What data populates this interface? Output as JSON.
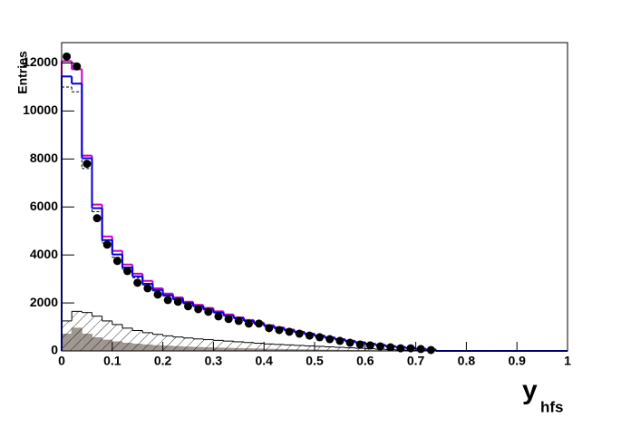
{
  "chart_data": {
    "type": "histogram",
    "y_label": "Entries",
    "x_label": "y",
    "x_label_sub": "hfs",
    "bins": [
      0,
      0.02,
      0.04,
      0.06,
      0.08,
      0.1,
      0.12,
      0.14,
      0.16,
      0.18,
      0.2,
      0.22,
      0.24,
      0.26,
      0.28,
      0.3,
      0.32,
      0.34,
      0.36,
      0.38,
      0.4,
      0.42,
      0.44,
      0.46,
      0.48,
      0.5,
      0.52,
      0.54,
      0.56,
      0.58,
      0.6,
      0.62,
      0.64,
      0.66,
      0.68,
      0.7,
      0.72,
      0.74,
      0.76,
      0.78,
      0.8,
      0.82,
      0.84,
      0.86,
      0.88,
      0.9,
      0.92,
      0.94,
      0.96,
      0.98,
      1
    ],
    "xlim": [
      0,
      1
    ],
    "xticks": [
      0,
      0.1,
      0.2,
      0.3,
      0.4,
      0.5,
      0.6,
      0.7,
      0.8,
      0.9,
      1
    ],
    "ylim": [
      0,
      12850
    ],
    "yticks": [
      0,
      2000,
      4000,
      6000,
      8000,
      10000,
      12000
    ],
    "series": [
      {
        "style": "filled",
        "color": "#a09690",
        "values": [
          700,
          950,
          700,
          550,
          450,
          380,
          320,
          280,
          250,
          220,
          200,
          180,
          160,
          145,
          130,
          120,
          110,
          100,
          90,
          80,
          70,
          62,
          55,
          48,
          42,
          36,
          30,
          25,
          20,
          16,
          12,
          9,
          6,
          4,
          3,
          2,
          1,
          0,
          0,
          0,
          0,
          0,
          0,
          0,
          0,
          0,
          0,
          0,
          0,
          0
        ]
      },
      {
        "style": "hatched",
        "color": "#000000",
        "values": [
          1250,
          1650,
          1600,
          1450,
          1250,
          1100,
          950,
          850,
          760,
          690,
          630,
          580,
          540,
          500,
          470,
          440,
          410,
          380,
          350,
          320,
          290,
          270,
          250,
          230,
          210,
          190,
          170,
          150,
          130,
          110,
          90,
          70,
          55,
          40,
          30,
          20,
          10,
          0,
          0,
          0,
          0,
          0,
          0,
          0,
          0,
          0,
          0,
          0,
          0,
          0
        ]
      },
      {
        "style": "dashed",
        "color": "#000000",
        "values": [
          11000,
          10800,
          7600,
          5800,
          4500,
          3900,
          3400,
          3050,
          2750,
          2500,
          2290,
          2130,
          1970,
          1850,
          1730,
          1600,
          1480,
          1370,
          1260,
          1160,
          1060,
          970,
          890,
          810,
          730,
          650,
          580,
          510,
          440,
          380,
          320,
          270,
          220,
          170,
          130,
          95,
          60,
          0,
          0,
          0,
          0,
          0,
          0,
          0,
          0,
          0,
          0,
          0,
          0,
          0
        ]
      },
      {
        "style": "line",
        "color": "#cc00cc",
        "values": [
          12080,
          11740,
          8140,
          6100,
          4770,
          4170,
          3600,
          3220,
          2920,
          2610,
          2390,
          2230,
          2050,
          1920,
          1790,
          1650,
          1520,
          1400,
          1290,
          1180,
          1070,
          980,
          890,
          800,
          720,
          640,
          560,
          490,
          420,
          360,
          300,
          250,
          200,
          160,
          120,
          90,
          60,
          0,
          0,
          0,
          0,
          0,
          0,
          0,
          0,
          0,
          0,
          0,
          0,
          0
        ]
      },
      {
        "style": "line",
        "color": "#0000dd",
        "values": [
          11440,
          11140,
          8030,
          5950,
          4620,
          4020,
          3480,
          3110,
          2800,
          2540,
          2320,
          2160,
          1990,
          1860,
          1730,
          1600,
          1470,
          1360,
          1250,
          1140,
          1040,
          950,
          860,
          780,
          700,
          620,
          550,
          480,
          410,
          350,
          290,
          240,
          190,
          150,
          115,
          85,
          55,
          0,
          0,
          0,
          0,
          0,
          0,
          0,
          0,
          0,
          0,
          0,
          0,
          0
        ]
      },
      {
        "style": "points",
        "color": "#000000",
        "values": [
          12270,
          11860,
          7800,
          5530,
          4430,
          3750,
          3330,
          2840,
          2610,
          2350,
          2120,
          2050,
          1860,
          1740,
          1630,
          1440,
          1330,
          1250,
          1140,
          1140,
          950,
          870,
          800,
          720,
          640,
          570,
          490,
          420,
          340,
          270,
          230,
          190,
          150,
          110,
          110,
          80,
          40,
          null,
          null,
          null,
          null,
          null,
          null,
          null,
          null,
          null,
          null,
          null,
          null,
          null
        ]
      }
    ]
  }
}
